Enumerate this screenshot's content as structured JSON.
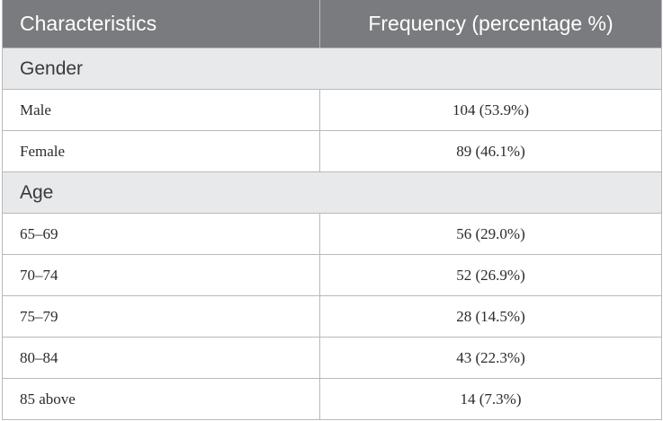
{
  "header": {
    "col1": "Characteristics",
    "col2": "Frequency (percentage %)"
  },
  "sections": [
    {
      "title": "Gender",
      "rows": [
        {
          "label": "Male",
          "value": "104 (53.9%)"
        },
        {
          "label": "Female",
          "value": "89 (46.1%)"
        }
      ]
    },
    {
      "title": "Age",
      "rows": [
        {
          "label": "65–69",
          "value": "56 (29.0%)"
        },
        {
          "label": "70–74",
          "value": "52 (26.9%)"
        },
        {
          "label": "75–79",
          "value": "28 (14.5%)"
        },
        {
          "label": "80–84",
          "value": "43 (22.3%)"
        },
        {
          "label": "85 above",
          "value": "14 (7.3%)"
        }
      ]
    }
  ]
}
